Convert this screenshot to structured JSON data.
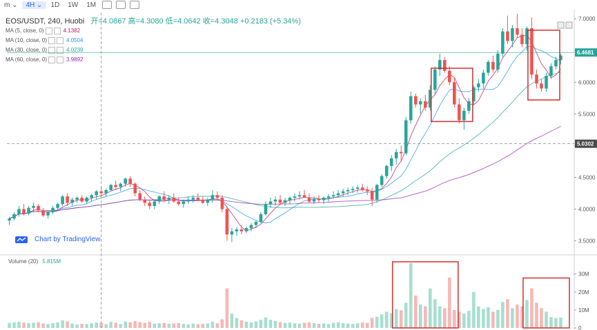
{
  "toolbar": {
    "items": [
      "m",
      "4H",
      "1D",
      "1W",
      "1M"
    ],
    "active_index": 1
  },
  "header": {
    "symbol": "EOS/USDT, 240, Huobi",
    "ohlc_text": "开=4.0867 高=4.3080 低=4.0642 收=4.3048 +0.2183 (+5.34%)"
  },
  "indicators": [
    {
      "label": "MA (5, close, 0)",
      "value": "4.1382",
      "color": "#c2185b"
    },
    {
      "label": "MA (10, close, 0)",
      "value": "4.0504",
      "color": "#2196f3"
    },
    {
      "label": "MA (30, close, 0)",
      "value": "4.0239",
      "color": "#26a69a"
    },
    {
      "label": "MA (60, close, 0)",
      "value": "3.9892",
      "color": "#9c27b0"
    }
  ],
  "volume_indicator": {
    "label": "Volume (20)",
    "value": "5.815M"
  },
  "brand": "Chart by TradingView",
  "price_axis": {
    "ticks": [
      "7.0000",
      "6.5000",
      "6.0000",
      "5.5000",
      "5.0000",
      "4.5000",
      "4.0000",
      "3.5000"
    ],
    "tick_values": [
      7.0,
      6.5,
      6.0,
      5.5,
      5.0,
      4.5,
      4.0,
      3.5
    ],
    "current_price": "6.4681",
    "crosshair_price": "5.0302"
  },
  "volume_axis": {
    "ticks": [
      "30M",
      "20M",
      "10M",
      "0"
    ],
    "tick_values": [
      30,
      20,
      10,
      0
    ]
  },
  "colors": {
    "up": "#26a69a",
    "down": "#ef5350",
    "highlight_box": "#d32f2f",
    "price_line": "#26a69a"
  },
  "chart_data": {
    "type": "candlestick",
    "ylim": [
      3.3,
      7.1
    ],
    "volume_ylim_millions": [
      0,
      36
    ],
    "candles": [
      [
        3.82,
        3.88,
        3.75,
        3.85,
        2.8
      ],
      [
        3.85,
        3.95,
        3.82,
        3.92,
        3.1
      ],
      [
        3.92,
        4.05,
        3.88,
        4.0,
        3.4
      ],
      [
        4.0,
        4.08,
        3.9,
        3.93,
        3.0
      ],
      [
        3.93,
        4.05,
        3.9,
        4.02,
        2.6
      ],
      [
        4.02,
        4.1,
        3.95,
        4.05,
        2.9
      ],
      [
        4.05,
        4.08,
        3.95,
        3.98,
        3.2
      ],
      [
        3.98,
        4.02,
        3.88,
        3.9,
        2.5
      ],
      [
        3.9,
        3.98,
        3.85,
        3.95,
        2.2
      ],
      [
        3.95,
        4.05,
        3.92,
        4.02,
        2.7
      ],
      [
        4.02,
        4.1,
        3.98,
        4.08,
        3.1
      ],
      [
        4.08,
        4.22,
        4.05,
        4.2,
        4.2
      ],
      [
        4.2,
        4.25,
        4.05,
        4.1,
        3.6
      ],
      [
        4.1,
        4.18,
        4.05,
        4.15,
        2.4
      ],
      [
        4.15,
        4.2,
        4.1,
        4.18,
        2.0
      ],
      [
        4.18,
        4.22,
        4.1,
        4.12,
        2.3
      ],
      [
        4.12,
        4.2,
        4.08,
        4.18,
        2.1
      ],
      [
        4.18,
        4.24,
        4.12,
        4.22,
        2.6
      ],
      [
        4.22,
        4.3,
        4.15,
        4.28,
        3.0
      ],
      [
        4.28,
        4.35,
        4.2,
        4.25,
        2.8
      ],
      [
        4.25,
        4.32,
        4.2,
        4.3,
        2.1
      ],
      [
        4.3,
        4.4,
        4.28,
        4.38,
        3.4
      ],
      [
        4.38,
        4.45,
        4.3,
        4.35,
        2.9
      ],
      [
        4.35,
        4.42,
        4.28,
        4.4,
        2.2
      ],
      [
        4.4,
        4.5,
        4.35,
        4.48,
        3.6
      ],
      [
        4.48,
        4.52,
        4.35,
        4.4,
        3.1
      ],
      [
        4.4,
        4.42,
        4.2,
        4.25,
        3.8
      ],
      [
        4.25,
        4.3,
        4.12,
        4.15,
        3.2
      ],
      [
        4.15,
        4.2,
        4.05,
        4.1,
        2.9
      ],
      [
        4.1,
        4.15,
        4.0,
        4.05,
        3.3
      ],
      [
        4.05,
        4.15,
        4.0,
        4.12,
        2.4
      ],
      [
        4.12,
        4.22,
        4.08,
        4.2,
        2.6
      ],
      [
        4.2,
        4.28,
        4.12,
        4.15,
        2.8
      ],
      [
        4.15,
        4.22,
        4.08,
        4.18,
        2.3
      ],
      [
        4.18,
        4.25,
        4.1,
        4.12,
        2.5
      ],
      [
        4.12,
        4.18,
        4.05,
        4.08,
        2.7
      ],
      [
        4.08,
        4.15,
        4.02,
        4.12,
        2.2
      ],
      [
        4.12,
        4.2,
        4.08,
        4.15,
        2.0
      ],
      [
        4.15,
        4.22,
        4.1,
        4.18,
        2.4
      ],
      [
        4.18,
        4.25,
        4.12,
        4.15,
        2.1
      ],
      [
        4.15,
        4.2,
        4.08,
        4.1,
        2.3
      ],
      [
        4.1,
        4.18,
        4.05,
        4.15,
        2.5
      ],
      [
        4.15,
        4.3,
        4.1,
        4.22,
        3.4
      ],
      [
        4.22,
        4.28,
        4.15,
        4.18,
        2.6
      ],
      [
        4.18,
        4.22,
        3.95,
        4.0,
        4.8
      ],
      [
        4.0,
        4.05,
        3.5,
        3.6,
        22.0
      ],
      [
        3.6,
        3.7,
        3.48,
        3.65,
        8.0
      ],
      [
        3.65,
        3.72,
        3.58,
        3.68,
        5.5
      ],
      [
        3.68,
        3.75,
        3.6,
        3.65,
        4.2
      ],
      [
        3.65,
        3.72,
        3.62,
        3.7,
        3.5
      ],
      [
        3.7,
        3.78,
        3.65,
        3.75,
        3.1
      ],
      [
        3.75,
        3.82,
        3.7,
        3.8,
        3.6
      ],
      [
        3.8,
        3.95,
        3.78,
        3.92,
        4.5
      ],
      [
        3.92,
        4.12,
        3.9,
        4.08,
        5.8
      ],
      [
        4.08,
        4.18,
        4.02,
        4.12,
        4.6
      ],
      [
        4.12,
        4.2,
        4.05,
        4.15,
        3.9
      ],
      [
        4.15,
        4.22,
        4.08,
        4.1,
        3.2
      ],
      [
        4.1,
        4.18,
        4.05,
        4.14,
        2.8
      ],
      [
        4.14,
        4.2,
        4.08,
        4.18,
        3.0
      ],
      [
        4.18,
        4.25,
        4.12,
        4.2,
        2.6
      ],
      [
        4.2,
        4.28,
        4.15,
        4.22,
        2.4
      ],
      [
        4.22,
        4.3,
        4.18,
        4.18,
        2.9
      ],
      [
        4.18,
        4.25,
        4.1,
        4.12,
        3.1
      ],
      [
        4.12,
        4.2,
        4.08,
        4.16,
        2.7
      ],
      [
        4.16,
        4.22,
        4.1,
        4.14,
        2.3
      ],
      [
        4.14,
        4.2,
        4.08,
        4.18,
        2.5
      ],
      [
        4.18,
        4.24,
        4.12,
        4.2,
        2.2
      ],
      [
        4.2,
        4.28,
        4.16,
        4.22,
        2.8
      ],
      [
        4.22,
        4.3,
        4.18,
        4.25,
        3.1
      ],
      [
        4.25,
        4.32,
        4.2,
        4.28,
        2.7
      ],
      [
        4.28,
        4.34,
        4.22,
        4.3,
        2.4
      ],
      [
        4.3,
        4.36,
        4.25,
        4.32,
        2.2
      ],
      [
        4.32,
        4.38,
        4.26,
        4.34,
        2.6
      ],
      [
        4.34,
        4.4,
        4.28,
        4.3,
        3.0
      ],
      [
        4.3,
        4.36,
        4.22,
        4.28,
        2.8
      ],
      [
        4.28,
        4.34,
        4.05,
        4.15,
        5.6
      ],
      [
        4.15,
        4.4,
        4.1,
        4.38,
        6.2
      ],
      [
        4.38,
        4.55,
        4.35,
        4.52,
        7.5
      ],
      [
        4.52,
        4.7,
        4.48,
        4.68,
        9.0
      ],
      [
        4.68,
        4.85,
        4.6,
        4.8,
        8.2
      ],
      [
        4.8,
        4.95,
        4.7,
        4.9,
        10.5
      ],
      [
        4.9,
        5.0,
        4.75,
        4.88,
        9.8
      ],
      [
        4.88,
        5.45,
        4.85,
        5.4,
        14.0
      ],
      [
        5.4,
        5.85,
        5.35,
        5.78,
        36.0
      ],
      [
        5.78,
        5.82,
        5.6,
        5.65,
        18.0
      ],
      [
        5.65,
        5.75,
        5.5,
        5.7,
        13.0
      ],
      [
        5.7,
        5.8,
        5.55,
        5.6,
        12.0
      ],
      [
        5.6,
        5.95,
        5.55,
        5.88,
        22.0
      ],
      [
        5.88,
        6.25,
        5.82,
        6.2,
        16.0
      ],
      [
        6.2,
        6.45,
        6.1,
        6.35,
        12.0
      ],
      [
        6.35,
        6.4,
        6.15,
        6.18,
        11.0
      ],
      [
        6.18,
        6.25,
        5.95,
        6.0,
        28.0
      ],
      [
        6.0,
        6.08,
        5.6,
        5.65,
        10.0
      ],
      [
        5.65,
        5.75,
        5.35,
        5.4,
        9.0
      ],
      [
        5.4,
        5.6,
        5.25,
        5.55,
        8.0
      ],
      [
        5.55,
        5.75,
        5.5,
        5.7,
        9.5
      ],
      [
        5.7,
        5.95,
        5.65,
        5.92,
        20.0
      ],
      [
        5.92,
        6.05,
        5.85,
        5.98,
        12.0
      ],
      [
        5.98,
        6.2,
        5.9,
        6.15,
        10.5
      ],
      [
        6.15,
        6.35,
        6.1,
        6.32,
        11.5
      ],
      [
        6.32,
        6.42,
        6.15,
        6.2,
        9.0
      ],
      [
        6.2,
        6.5,
        6.15,
        6.45,
        10.0
      ],
      [
        6.45,
        6.85,
        6.4,
        6.8,
        14.5
      ],
      [
        6.8,
        7.05,
        6.6,
        6.65,
        16.0
      ],
      [
        6.65,
        6.9,
        6.55,
        6.85,
        11.0
      ],
      [
        6.85,
        7.08,
        6.7,
        6.75,
        13.0
      ],
      [
        6.75,
        6.85,
        6.55,
        6.6,
        12.0
      ],
      [
        6.6,
        6.88,
        6.5,
        6.85,
        15.5
      ],
      [
        6.85,
        7.02,
        6.05,
        6.12,
        22.0
      ],
      [
        6.12,
        6.2,
        5.9,
        5.98,
        14.0
      ],
      [
        5.98,
        6.05,
        5.85,
        5.9,
        11.0
      ],
      [
        5.9,
        6.15,
        5.85,
        6.1,
        9.0
      ],
      [
        6.1,
        6.3,
        6.05,
        6.25,
        6.0
      ],
      [
        6.25,
        6.4,
        6.2,
        6.35,
        5.5
      ],
      [
        6.35,
        6.45,
        6.28,
        6.42,
        5.8
      ]
    ],
    "annotations": [
      {
        "type": "box",
        "pane": "price",
        "from_index": 88,
        "to_index": 95,
        "y_top": 6.22,
        "y_bottom": 5.38
      },
      {
        "type": "box",
        "pane": "price",
        "from_index": 108,
        "to_index": 113,
        "y_top": 6.82,
        "y_bottom": 5.72
      },
      {
        "type": "box",
        "pane": "volume",
        "from_index": 80,
        "to_index": 92,
        "y_top": 36,
        "y_bottom": 0
      },
      {
        "type": "box",
        "pane": "volume",
        "from_index": 107,
        "to_index": 115,
        "y_top": 27,
        "y_bottom": 0
      }
    ]
  }
}
